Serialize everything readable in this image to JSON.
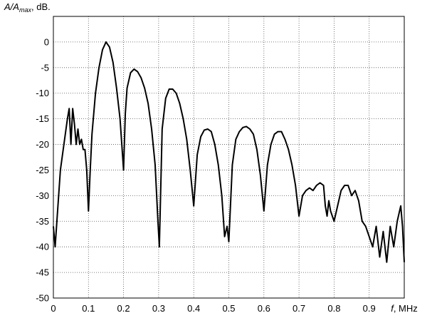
{
  "chart_data": {
    "type": "line",
    "y_label_main": "A/A",
    "y_label_sub": "max",
    "y_label_suffix": ", dB.",
    "x_label_main": "f",
    "x_label_suffix": ", MHz",
    "xlim": [
      0,
      1
    ],
    "ylim": [
      -50,
      5
    ],
    "xticks": [
      0,
      0.1,
      0.2,
      0.3,
      0.4,
      0.5,
      0.6,
      0.7,
      0.8,
      0.9
    ],
    "yticks": [
      -50,
      -45,
      -40,
      -35,
      -30,
      -25,
      -20,
      -15,
      -10,
      -5,
      0
    ],
    "grid": true,
    "series": [
      {
        "color": "#000000",
        "x": [
          0,
          0.005,
          0.01,
          0.02,
          0.03,
          0.04,
          0.045,
          0.05,
          0.055,
          0.06,
          0.065,
          0.07,
          0.075,
          0.08,
          0.085,
          0.09,
          0.095,
          0.1,
          0.105,
          0.11,
          0.12,
          0.13,
          0.14,
          0.15,
          0.16,
          0.17,
          0.18,
          0.19,
          0.2,
          0.205,
          0.21,
          0.22,
          0.23,
          0.24,
          0.25,
          0.26,
          0.27,
          0.28,
          0.29,
          0.298,
          0.302,
          0.31,
          0.32,
          0.33,
          0.34,
          0.35,
          0.36,
          0.37,
          0.38,
          0.39,
          0.4,
          0.41,
          0.42,
          0.43,
          0.44,
          0.45,
          0.46,
          0.47,
          0.48,
          0.488,
          0.495,
          0.5,
          0.51,
          0.52,
          0.53,
          0.54,
          0.55,
          0.56,
          0.57,
          0.58,
          0.59,
          0.6,
          0.61,
          0.62,
          0.63,
          0.64,
          0.65,
          0.66,
          0.67,
          0.68,
          0.69,
          0.7,
          0.71,
          0.72,
          0.73,
          0.74,
          0.75,
          0.76,
          0.77,
          0.775,
          0.78,
          0.785,
          0.79,
          0.8,
          0.81,
          0.82,
          0.83,
          0.84,
          0.85,
          0.86,
          0.87,
          0.88,
          0.89,
          0.9,
          0.91,
          0.92,
          0.93,
          0.94,
          0.95,
          0.96,
          0.97,
          0.98,
          0.99,
          0.995,
          1.0
        ],
        "values": [
          -36,
          -40,
          -35,
          -25,
          -20,
          -15,
          -13,
          -20,
          -13,
          -16,
          -20,
          -17,
          -20,
          -19,
          -21,
          -21,
          -25,
          -33,
          -25,
          -18,
          -10,
          -5,
          -1.5,
          0,
          -1,
          -4,
          -9,
          -15,
          -25,
          -14,
          -9,
          -6,
          -5.3,
          -5.8,
          -7,
          -9,
          -12,
          -17,
          -24,
          -35,
          -40,
          -17,
          -11,
          -9.2,
          -9.2,
          -10,
          -12,
          -15,
          -19,
          -25,
          -32,
          -22,
          -18.5,
          -17.2,
          -17,
          -17.5,
          -20,
          -24,
          -30,
          -38,
          -36,
          -39,
          -24,
          -19,
          -17.5,
          -16.7,
          -16.5,
          -17,
          -18,
          -21,
          -26,
          -33,
          -24,
          -20,
          -18,
          -17.5,
          -17.5,
          -19,
          -21,
          -24,
          -28,
          -34,
          -30,
          -29,
          -28.5,
          -29,
          -28,
          -27.5,
          -28,
          -32,
          -34,
          -31,
          -33,
          -35,
          -32,
          -29,
          -28,
          -28,
          -30,
          -29,
          -31,
          -35,
          -36,
          -38,
          -40,
          -36,
          -42,
          -37,
          -43,
          -36,
          -40,
          -35,
          -32,
          -36,
          -43
        ]
      }
    ]
  }
}
